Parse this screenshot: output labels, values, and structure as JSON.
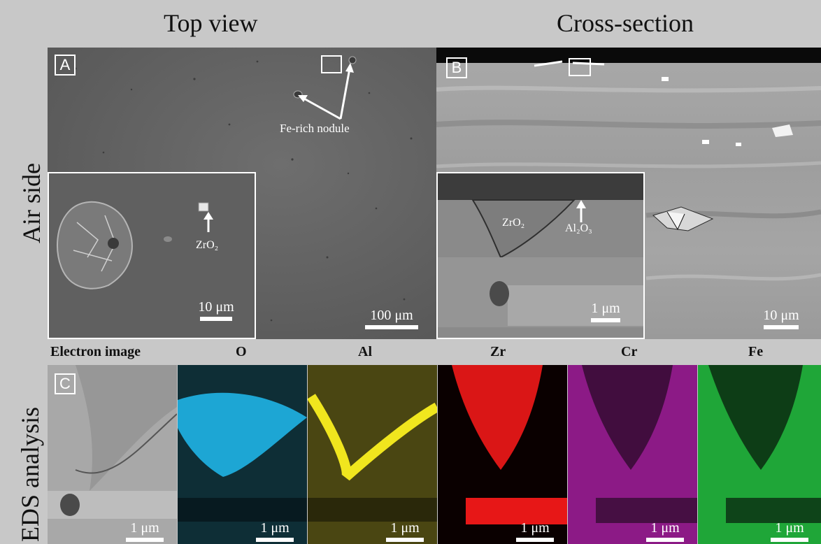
{
  "columns": {
    "top_view": "Top view",
    "cross_section": "Cross-section"
  },
  "rows": {
    "air_side": "Air side",
    "eds": "EDS analysis"
  },
  "panelA": {
    "label": "A",
    "annotation": "Fe-rich nodule",
    "scale": "100 μm",
    "inset": {
      "annotation": "ZrO₂",
      "scale": "10 μm"
    }
  },
  "panelB": {
    "label": "B",
    "scale": "10 μm",
    "inset": {
      "annotation_zro2": "ZrO₂",
      "annotation_al2o3": "Al₂O₃",
      "scale": "1 μm"
    }
  },
  "panelC": {
    "label": "C",
    "maps": [
      {
        "title": "Electron image",
        "scale": "1 μm",
        "color": "#b4b4b4"
      },
      {
        "title": "O",
        "scale": "1 μm",
        "color": "#1fb4e6"
      },
      {
        "title": "Al",
        "scale": "1 μm",
        "color": "#f0e61e"
      },
      {
        "title": "Zr",
        "scale": "1 μm",
        "color": "#ff1a1a"
      },
      {
        "title": "Cr",
        "scale": "1 μm",
        "color": "#d21ed2"
      },
      {
        "title": "Fe",
        "scale": "1 μm",
        "color": "#1ed23c"
      }
    ]
  }
}
